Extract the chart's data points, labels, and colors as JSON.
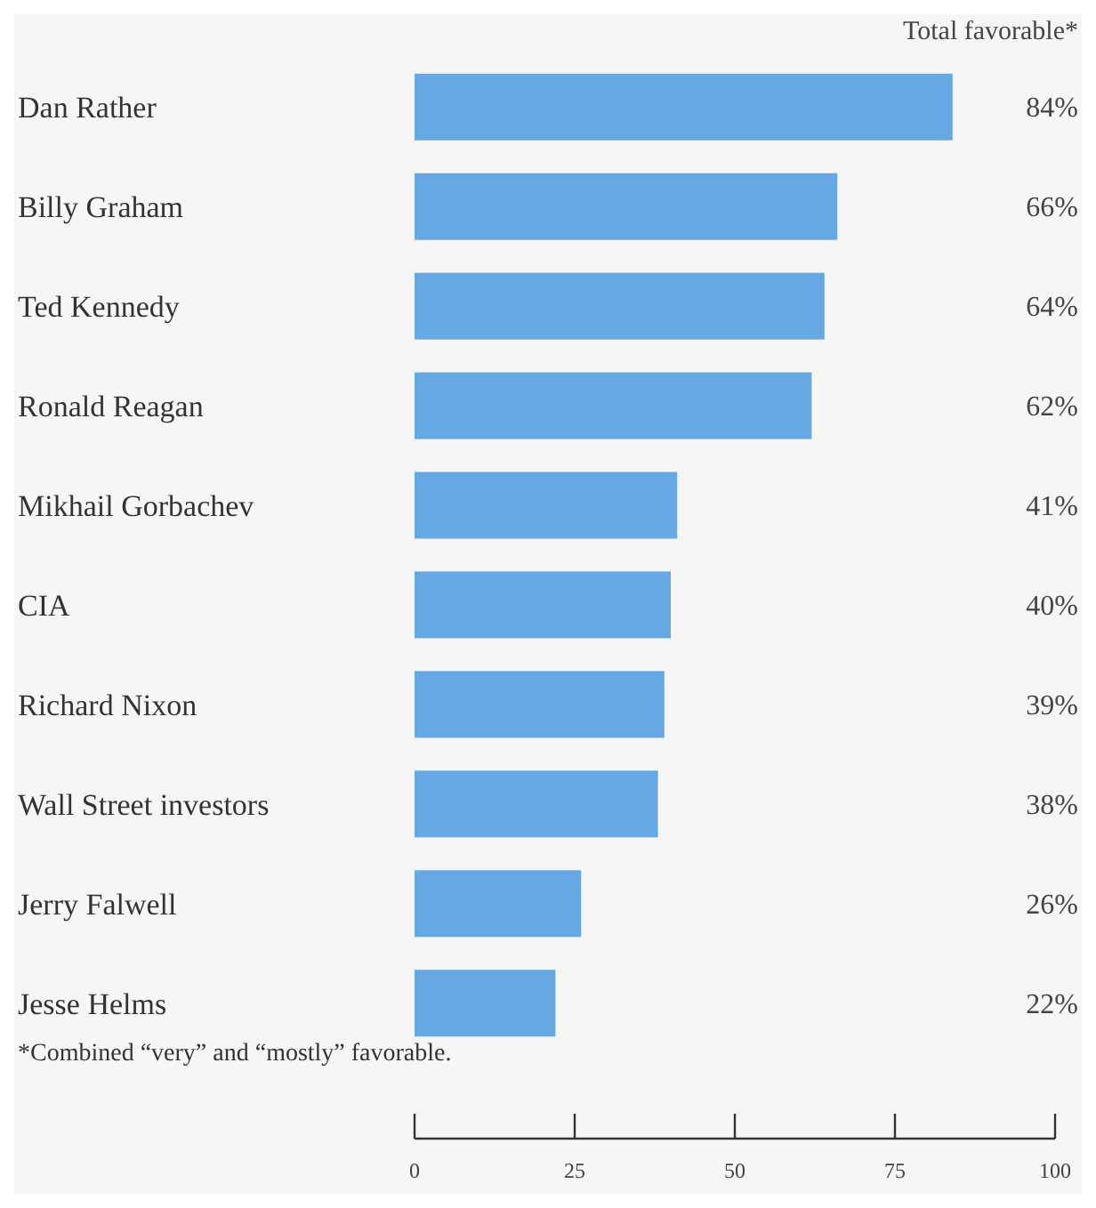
{
  "chart_data": {
    "type": "bar",
    "orientation": "horizontal",
    "categories": [
      "Dan Rather",
      "Billy Graham",
      "Ted Kennedy",
      "Ronald Reagan",
      "Mikhail Gorbachev",
      "CIA",
      "Richard Nixon",
      "Wall Street investors",
      "Jerry Falwell",
      "Jesse Helms"
    ],
    "values": [
      84,
      66,
      64,
      62,
      41,
      40,
      39,
      38,
      26,
      22
    ],
    "value_labels": [
      "84%",
      "66%",
      "64%",
      "62%",
      "41%",
      "40%",
      "39%",
      "38%",
      "26%",
      "22%"
    ],
    "color": "#66a8e4",
    "xlim": [
      0,
      100
    ],
    "xticks": [
      0,
      25,
      50,
      75,
      100
    ],
    "grid": false,
    "annotations": [
      "Total favorable*",
      "*Combined “very” and “mostly” favorable."
    ]
  }
}
